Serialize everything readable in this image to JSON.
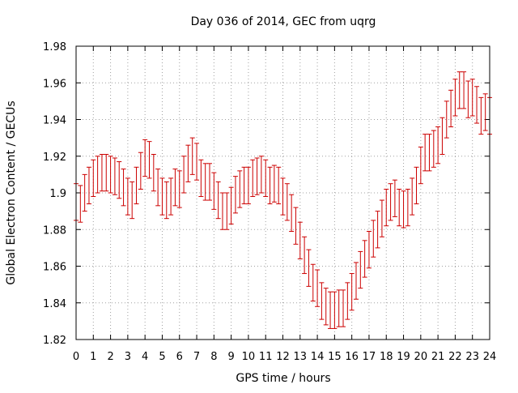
{
  "chart_data": {
    "type": "scatter",
    "title": "Day 036 of 2014, GEC from uqrg",
    "xlabel": "GPS time / hours",
    "ylabel": "Global Electron Content / GECUs",
    "xlim": [
      0,
      24
    ],
    "ylim": [
      1.82,
      1.98
    ],
    "xticks": [
      "0",
      "1",
      "2",
      "3",
      "4",
      "5",
      "6",
      "7",
      "8",
      "9",
      "10",
      "11",
      "12",
      "13",
      "14",
      "15",
      "16",
      "17",
      "18",
      "19",
      "20",
      "21",
      "22",
      "23",
      "24"
    ],
    "yticks": [
      "1.82",
      "1.84",
      "1.86",
      "1.88",
      "1.9",
      "1.92",
      "1.94",
      "1.96",
      "1.98"
    ],
    "grid": true,
    "error_bars": true,
    "series": [
      {
        "color": "#cc0000",
        "x": [
          0.0,
          0.25,
          0.5,
          0.75,
          1.0,
          1.25,
          1.5,
          1.75,
          2.0,
          2.25,
          2.5,
          2.75,
          3.0,
          3.25,
          3.5,
          3.75,
          4.0,
          4.25,
          4.5,
          4.75,
          5.0,
          5.25,
          5.5,
          5.75,
          6.0,
          6.25,
          6.5,
          6.75,
          7.0,
          7.25,
          7.5,
          7.75,
          8.0,
          8.25,
          8.5,
          8.75,
          9.0,
          9.25,
          9.5,
          9.75,
          10.0,
          10.25,
          10.5,
          10.75,
          11.0,
          11.25,
          11.5,
          11.75,
          12.0,
          12.25,
          12.5,
          12.75,
          13.0,
          13.25,
          13.5,
          13.75,
          14.0,
          14.25,
          14.5,
          14.75,
          15.0,
          15.25,
          15.5,
          15.75,
          16.0,
          16.25,
          16.5,
          16.75,
          17.0,
          17.25,
          17.5,
          17.75,
          18.0,
          18.25,
          18.5,
          18.75,
          19.0,
          19.25,
          19.5,
          19.75,
          20.0,
          20.25,
          20.5,
          20.75,
          21.0,
          21.25,
          21.5,
          21.75,
          22.0,
          22.25,
          22.5,
          22.75,
          23.0,
          23.25,
          23.5,
          23.75,
          24.0
        ],
        "y": [
          1.895,
          1.894,
          1.9,
          1.904,
          1.908,
          1.91,
          1.911,
          1.911,
          1.91,
          1.909,
          1.907,
          1.903,
          1.898,
          1.896,
          1.904,
          1.912,
          1.919,
          1.918,
          1.911,
          1.903,
          1.898,
          1.896,
          1.898,
          1.903,
          1.902,
          1.91,
          1.916,
          1.92,
          1.917,
          1.908,
          1.906,
          1.906,
          1.901,
          1.896,
          1.89,
          1.89,
          1.893,
          1.899,
          1.902,
          1.904,
          1.904,
          1.908,
          1.909,
          1.91,
          1.908,
          1.904,
          1.905,
          1.904,
          1.898,
          1.895,
          1.889,
          1.882,
          1.874,
          1.866,
          1.859,
          1.851,
          1.848,
          1.841,
          1.838,
          1.836,
          1.836,
          1.837,
          1.837,
          1.841,
          1.846,
          1.852,
          1.858,
          1.864,
          1.869,
          1.875,
          1.88,
          1.886,
          1.892,
          1.895,
          1.897,
          1.892,
          1.891,
          1.892,
          1.898,
          1.904,
          1.915,
          1.922,
          1.922,
          1.924,
          1.926,
          1.931,
          1.94,
          1.946,
          1.952,
          1.956,
          1.956,
          1.951,
          1.952,
          1.948,
          1.942,
          1.944,
          1.942
        ],
        "err": 0.01
      }
    ]
  }
}
